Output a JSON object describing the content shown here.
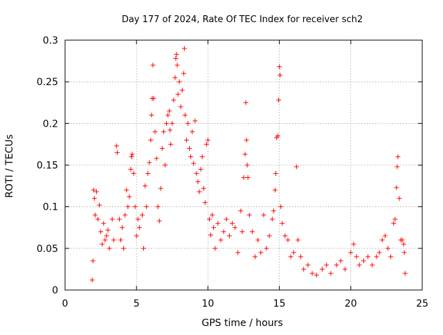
{
  "chart_data": {
    "type": "scatter",
    "title": "Day 177 of 2024, Rate Of TEC Index for receiver sch2",
    "xlabel": "GPS time / hours",
    "ylabel": "ROTI / TECUs",
    "xlim": [
      0,
      25
    ],
    "ylim": [
      0,
      0.3
    ],
    "x_ticks": [
      0,
      5,
      10,
      15,
      20,
      25
    ],
    "x_tick_labels": [
      "0",
      "5",
      "10",
      "15",
      "20",
      "25"
    ],
    "y_ticks": [
      0,
      0.05,
      0.1,
      0.15,
      0.2,
      0.25,
      0.3
    ],
    "y_tick_labels": [
      "0",
      "0.05",
      "0.1",
      "0.15",
      "0.2",
      "0.25",
      "0.3"
    ],
    "grid": true,
    "marker": "+",
    "marker_color": "#ff0000",
    "x_range_of_data": [
      1.9,
      23.8
    ],
    "series": [
      {
        "points": [
          [
            1.9,
            0.012
          ],
          [
            1.95,
            0.035
          ],
          [
            2.0,
            0.12
          ],
          [
            2.05,
            0.11
          ],
          [
            2.1,
            0.09
          ],
          [
            2.2,
            0.118
          ],
          [
            2.3,
            0.085
          ],
          [
            2.4,
            0.102
          ],
          [
            2.5,
            0.07
          ],
          [
            2.6,
            0.055
          ],
          [
            2.7,
            0.08
          ],
          [
            2.8,
            0.06
          ],
          [
            2.9,
            0.065
          ],
          [
            3.0,
            0.072
          ],
          [
            3.1,
            0.05
          ],
          [
            3.3,
            0.085
          ],
          [
            3.4,
            0.06
          ],
          [
            3.6,
            0.173
          ],
          [
            3.65,
            0.165
          ],
          [
            3.8,
            0.085
          ],
          [
            3.9,
            0.06
          ],
          [
            4.0,
            0.075
          ],
          [
            4.1,
            0.05
          ],
          [
            4.2,
            0.09
          ],
          [
            4.3,
            0.12
          ],
          [
            4.4,
            0.1
          ],
          [
            4.5,
            0.112
          ],
          [
            4.6,
            0.145
          ],
          [
            4.65,
            0.16
          ],
          [
            4.7,
            0.163
          ],
          [
            4.8,
            0.14
          ],
          [
            4.9,
            0.1
          ],
          [
            5.0,
            0.065
          ],
          [
            5.1,
            0.085
          ],
          [
            5.2,
            0.075
          ],
          [
            5.4,
            0.09
          ],
          [
            5.5,
            0.05
          ],
          [
            5.6,
            0.125
          ],
          [
            5.7,
            0.1
          ],
          [
            5.8,
            0.14
          ],
          [
            5.9,
            0.153
          ],
          [
            6.0,
            0.18
          ],
          [
            6.05,
            0.21
          ],
          [
            6.1,
            0.23
          ],
          [
            6.15,
            0.27
          ],
          [
            6.2,
            0.23
          ],
          [
            6.3,
            0.19
          ],
          [
            6.4,
            0.158
          ],
          [
            6.5,
            0.1
          ],
          [
            6.6,
            0.083
          ],
          [
            6.7,
            0.122
          ],
          [
            6.8,
            0.17
          ],
          [
            6.9,
            0.19
          ],
          [
            7.0,
            0.15
          ],
          [
            7.1,
            0.2
          ],
          [
            7.2,
            0.21
          ],
          [
            7.3,
            0.215
          ],
          [
            7.35,
            0.192
          ],
          [
            7.4,
            0.175
          ],
          [
            7.5,
            0.2
          ],
          [
            7.6,
            0.228
          ],
          [
            7.7,
            0.255
          ],
          [
            7.75,
            0.278
          ],
          [
            7.8,
            0.283
          ],
          [
            7.85,
            0.27
          ],
          [
            7.9,
            0.235
          ],
          [
            8.0,
            0.25
          ],
          [
            8.1,
            0.22
          ],
          [
            8.2,
            0.24
          ],
          [
            8.3,
            0.26
          ],
          [
            8.35,
            0.29
          ],
          [
            8.4,
            0.21
          ],
          [
            8.5,
            0.18
          ],
          [
            8.6,
            0.2
          ],
          [
            8.7,
            0.17
          ],
          [
            8.8,
            0.16
          ],
          [
            8.9,
            0.19
          ],
          [
            9.0,
            0.152
          ],
          [
            9.1,
            0.203
          ],
          [
            9.2,
            0.14
          ],
          [
            9.3,
            0.13
          ],
          [
            9.4,
            0.118
          ],
          [
            9.5,
            0.145
          ],
          [
            9.6,
            0.16
          ],
          [
            9.7,
            0.122
          ],
          [
            9.8,
            0.105
          ],
          [
            9.9,
            0.175
          ],
          [
            10.0,
            0.18
          ],
          [
            10.1,
            0.085
          ],
          [
            10.2,
            0.066
          ],
          [
            10.3,
            0.09
          ],
          [
            10.4,
            0.075
          ],
          [
            10.5,
            0.05
          ],
          [
            10.7,
            0.08
          ],
          [
            10.9,
            0.06
          ],
          [
            11.1,
            0.07
          ],
          [
            11.3,
            0.085
          ],
          [
            11.5,
            0.065
          ],
          [
            11.7,
            0.08
          ],
          [
            11.9,
            0.075
          ],
          [
            12.1,
            0.045
          ],
          [
            12.3,
            0.095
          ],
          [
            12.4,
            0.07
          ],
          [
            12.5,
            0.135
          ],
          [
            12.6,
            0.163
          ],
          [
            12.65,
            0.225
          ],
          [
            12.7,
            0.18
          ],
          [
            12.75,
            0.15
          ],
          [
            12.8,
            0.135
          ],
          [
            12.9,
            0.09
          ],
          [
            13.1,
            0.07
          ],
          [
            13.3,
            0.04
          ],
          [
            13.5,
            0.06
          ],
          [
            13.7,
            0.045
          ],
          [
            13.9,
            0.09
          ],
          [
            14.1,
            0.05
          ],
          [
            14.3,
            0.065
          ],
          [
            14.5,
            0.085
          ],
          [
            14.6,
            0.095
          ],
          [
            14.7,
            0.12
          ],
          [
            14.75,
            0.14
          ],
          [
            14.8,
            0.183
          ],
          [
            14.9,
            0.185
          ],
          [
            14.95,
            0.228
          ],
          [
            15.0,
            0.268
          ],
          [
            15.05,
            0.258
          ],
          [
            15.1,
            0.1
          ],
          [
            15.2,
            0.08
          ],
          [
            15.4,
            0.065
          ],
          [
            15.6,
            0.06
          ],
          [
            15.8,
            0.04
          ],
          [
            16.0,
            0.045
          ],
          [
            16.2,
            0.148
          ],
          [
            16.3,
            0.06
          ],
          [
            16.5,
            0.04
          ],
          [
            16.7,
            0.025
          ],
          [
            17.0,
            0.03
          ],
          [
            17.3,
            0.02
          ],
          [
            17.6,
            0.018
          ],
          [
            18.0,
            0.025
          ],
          [
            18.3,
            0.03
          ],
          [
            18.6,
            0.02
          ],
          [
            19.0,
            0.03
          ],
          [
            19.3,
            0.035
          ],
          [
            19.6,
            0.025
          ],
          [
            20.0,
            0.045
          ],
          [
            20.2,
            0.055
          ],
          [
            20.4,
            0.04
          ],
          [
            20.6,
            0.03
          ],
          [
            20.9,
            0.035
          ],
          [
            21.2,
            0.04
          ],
          [
            21.5,
            0.03
          ],
          [
            21.8,
            0.04
          ],
          [
            22.0,
            0.045
          ],
          [
            22.2,
            0.06
          ],
          [
            22.4,
            0.065
          ],
          [
            22.6,
            0.05
          ],
          [
            22.8,
            0.04
          ],
          [
            23.0,
            0.08
          ],
          [
            23.1,
            0.085
          ],
          [
            23.2,
            0.123
          ],
          [
            23.25,
            0.148
          ],
          [
            23.3,
            0.16
          ],
          [
            23.4,
            0.11
          ],
          [
            23.5,
            0.06
          ],
          [
            23.6,
            0.06
          ],
          [
            23.7,
            0.055
          ],
          [
            23.75,
            0.045
          ],
          [
            23.8,
            0.02
          ]
        ]
      }
    ]
  }
}
